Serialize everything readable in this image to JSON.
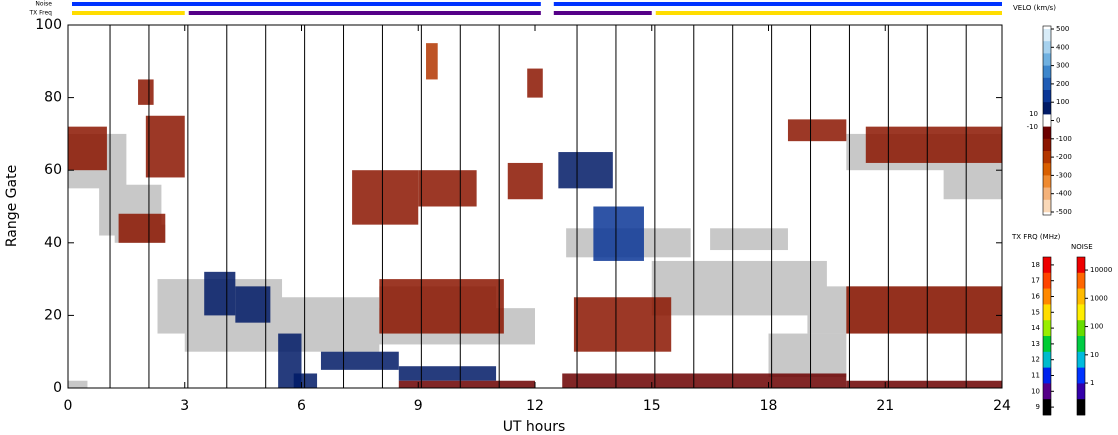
{
  "chart_data": {
    "type": "range-time",
    "xlabel": "UT hours",
    "ylabel": "Range Gate",
    "xlim": [
      0,
      24
    ],
    "ylim": [
      0,
      100
    ],
    "xticks": [
      0,
      3,
      6,
      9,
      12,
      15,
      18,
      21,
      24
    ],
    "yticks": [
      0,
      20,
      40,
      60,
      80,
      100
    ],
    "scan_lines": [
      1.08,
      2.08,
      3.08,
      4.08,
      5.08,
      6.08,
      7.08,
      8.08,
      9.08,
      10.08,
      11.08,
      13.08,
      14.08,
      15.08,
      16.08,
      17.08,
      18.08,
      19.08,
      20.08,
      21.08,
      22.08,
      23.08
    ],
    "ground_scatter_color": "#c8c8c8",
    "ground_scatter": [
      [
        0,
        1.5,
        55,
        70
      ],
      [
        0.8,
        2.4,
        42,
        56
      ],
      [
        1.2,
        2.5,
        40,
        45
      ],
      [
        0,
        0.5,
        0,
        2
      ],
      [
        2.3,
        5.5,
        15,
        30
      ],
      [
        3,
        8,
        10,
        25
      ],
      [
        5,
        12,
        12,
        22
      ],
      [
        8,
        11,
        20,
        28
      ],
      [
        12.8,
        16,
        36,
        44
      ],
      [
        15,
        19.5,
        20,
        35
      ],
      [
        18,
        20,
        3,
        15
      ],
      [
        19,
        24,
        15,
        28
      ],
      [
        20,
        24,
        60,
        70
      ],
      [
        22.5,
        24,
        52,
        62
      ],
      [
        16.5,
        18.5,
        38,
        44
      ]
    ],
    "echoes": [
      [
        0,
        1,
        60,
        72,
        -100
      ],
      [
        2,
        3,
        58,
        75,
        -120
      ],
      [
        1.8,
        2.2,
        78,
        85,
        -150
      ],
      [
        1.3,
        2.5,
        40,
        48,
        -100
      ],
      [
        3.5,
        4.3,
        20,
        32,
        80
      ],
      [
        4.3,
        5.2,
        18,
        28,
        80
      ],
      [
        5.4,
        6,
        0,
        15,
        80
      ],
      [
        5.8,
        6.4,
        0,
        4,
        80
      ],
      [
        6.5,
        8.5,
        5,
        10,
        80
      ],
      [
        8.5,
        11,
        2,
        6,
        80
      ],
      [
        7.3,
        9,
        45,
        60,
        -150
      ],
      [
        9,
        10.5,
        50,
        60,
        -150
      ],
      [
        11.3,
        12.2,
        52,
        62,
        -100
      ],
      [
        8,
        11.2,
        15,
        30,
        -150
      ],
      [
        12.6,
        14,
        55,
        65,
        90
      ],
      [
        13.5,
        14.8,
        35,
        50,
        120
      ],
      [
        13,
        15.5,
        10,
        25,
        -120
      ],
      [
        12.7,
        20,
        0,
        4,
        -90
      ],
      [
        20,
        24,
        0,
        2,
        -90
      ],
      [
        8.5,
        12,
        0,
        2,
        -90
      ],
      [
        20.5,
        24,
        62,
        72,
        -120
      ],
      [
        18.5,
        20,
        68,
        74,
        -100
      ],
      [
        20,
        24,
        15,
        28,
        -100
      ],
      [
        9.2,
        9.5,
        85,
        95,
        -200
      ],
      [
        11.8,
        12.2,
        80,
        88,
        -150
      ]
    ],
    "noise_label": "Noise",
    "tx_label": "TX Freq",
    "noise_bar": [
      [
        0,
        12.15,
        1
      ],
      [
        12.38,
        24,
        1
      ]
    ],
    "tx_bar": [
      [
        0,
        3,
        15
      ],
      [
        3,
        12.15,
        10
      ],
      [
        12.38,
        15,
        10
      ],
      [
        15,
        24,
        15
      ]
    ],
    "velocity_scale": {
      "label": "VELO (km/s)",
      "ylim": [
        -500,
        500
      ],
      "yticks": [
        500,
        400,
        300,
        200,
        100,
        0,
        -100,
        -200,
        -300,
        -400,
        -500
      ],
      "inner_ticks": [
        10,
        -10
      ],
      "colors": [
        "#d8ecf8",
        "#a6d1ee",
        "#6fb0e0",
        "#3d86cc",
        "#1f5cb5",
        "#0a3696",
        "#001a66",
        "#ffffff",
        "#6b0000",
        "#8b1500",
        "#b33600",
        "#d95f00",
        "#ef8a30",
        "#f4b27a",
        "#f9d8b8"
      ]
    },
    "tx_scale": {
      "label": "TX FRQ (MHz)",
      "ylim": [
        8.5,
        18.5
      ],
      "yticks": [
        18,
        17,
        16,
        15,
        14,
        13,
        12,
        11,
        10,
        9
      ],
      "colors": [
        "#ee0000",
        "#ff4400",
        "#ff8800",
        "#ffdd00",
        "#99ee00",
        "#00cc33",
        "#00bbcc",
        "#0022ee",
        "#550088",
        "#000000"
      ]
    },
    "noise_scale": {
      "label": "NOISE",
      "log": true,
      "ylim": [
        0.074,
        29000
      ],
      "yticks": [
        10000,
        1000,
        100,
        10,
        1
      ],
      "colors": [
        "#ee0000",
        "#ff6600",
        "#ffbb00",
        "#ffee00",
        "#66dd00",
        "#00cc44",
        "#00bbdd",
        "#0033ff",
        "#3300aa",
        "#000000"
      ]
    }
  }
}
